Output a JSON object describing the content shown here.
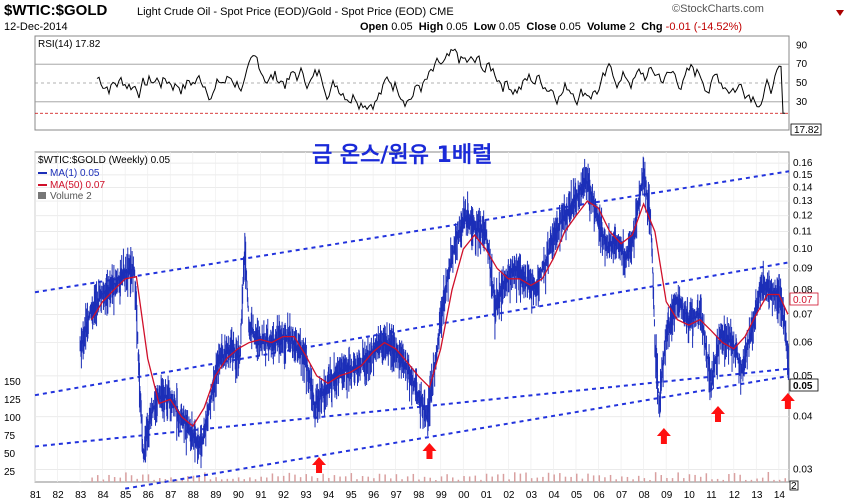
{
  "header": {
    "symbol": "$WTIC:$GOLD",
    "description": "Light Crude Oil - Spot Price (EOD)/Gold - Spot Price (EOD)",
    "exchange": "CME",
    "date": "12-Dec-2014",
    "logo": "©StockCharts.com",
    "open_label": "Open",
    "open": "0.05",
    "high_label": "High",
    "high": "0.05",
    "low_label": "Low",
    "low": "0.05",
    "close_label": "Close",
    "close": "0.05",
    "volume_label": "Volume",
    "volume": "2",
    "chg_label": "Chg",
    "chg": "-0.01 (-14.52%)",
    "marker_icon": "red-down-triangle-icon"
  },
  "annotation": "금 온스/원유 1배럴",
  "colors": {
    "price": "#1c2fb8",
    "ma50": "#d0102a",
    "channel": "#2233dd",
    "rsi": "#000000",
    "arrow": "#ff1010",
    "rsi_ref": "#cc0000"
  },
  "chart_data": [
    {
      "type": "line",
      "title": "RSI(14) 17.82",
      "series": [
        {
          "name": "RSI(14)",
          "last": 17.82
        }
      ],
      "ylim": [
        0,
        100
      ],
      "yticks": [
        "90",
        "70",
        "50",
        "30"
      ],
      "last_label": "17.82",
      "reference_lines": [
        70,
        50,
        30
      ]
    },
    {
      "type": "line",
      "log_scale": true,
      "title": "$WTIC:$GOLD (Weekly) 0.05",
      "legend": [
        "MA(1) 0.05",
        "MA(50) 0.07",
        "Volume 2"
      ],
      "legend_placement": "top-left",
      "right_ticks": [
        "0.16",
        "0.15",
        "0.14",
        "0.13",
        "0.12",
        "0.11",
        "0.10",
        "0.09",
        "0.08",
        "0.07",
        "0.06",
        "0.05",
        "0.04",
        "0.03"
      ],
      "left_volume_ticks": [
        "150",
        "125",
        "100",
        "75",
        "50",
        "25"
      ],
      "x_ticks": [
        "81",
        "82",
        "83",
        "84",
        "85",
        "86",
        "87",
        "88",
        "89",
        "90",
        "91",
        "92",
        "93",
        "94",
        "95",
        "96",
        "97",
        "98",
        "99",
        "00",
        "01",
        "02",
        "03",
        "04",
        "05",
        "06",
        "07",
        "08",
        "09",
        "10",
        "11",
        "12",
        "13",
        "14"
      ],
      "last_price_label": "0.05",
      "ma50_label": "0.07",
      "volume_label": "2",
      "ylim": [
        0.028,
        0.17
      ],
      "series": [
        {
          "name": "MA(1)",
          "points": [
            [
              1983.5,
              0.058
            ],
            [
              1984.0,
              0.072
            ],
            [
              1984.5,
              0.078
            ],
            [
              1985.0,
              0.082
            ],
            [
              1985.5,
              0.088
            ],
            [
              1985.9,
              0.09
            ],
            [
              1986.1,
              0.052
            ],
            [
              1986.3,
              0.032
            ],
            [
              1986.6,
              0.04
            ],
            [
              1987.0,
              0.045
            ],
            [
              1987.5,
              0.044
            ],
            [
              1988.0,
              0.04
            ],
            [
              1988.5,
              0.036
            ],
            [
              1988.9,
              0.034
            ],
            [
              1989.3,
              0.044
            ],
            [
              1989.7,
              0.055
            ],
            [
              1990.2,
              0.058
            ],
            [
              1990.6,
              0.055
            ],
            [
              1990.8,
              0.098
            ],
            [
              1991.0,
              0.065
            ],
            [
              1991.5,
              0.06
            ],
            [
              1992.0,
              0.06
            ],
            [
              1992.5,
              0.062
            ],
            [
              1993.0,
              0.06
            ],
            [
              1993.5,
              0.055
            ],
            [
              1993.9,
              0.042
            ],
            [
              1994.3,
              0.046
            ],
            [
              1994.8,
              0.05
            ],
            [
              1995.3,
              0.052
            ],
            [
              1995.8,
              0.052
            ],
            [
              1996.3,
              0.055
            ],
            [
              1996.8,
              0.06
            ],
            [
              1997.3,
              0.058
            ],
            [
              1997.8,
              0.055
            ],
            [
              1998.3,
              0.048
            ],
            [
              1998.9,
              0.04
            ],
            [
              1999.3,
              0.055
            ],
            [
              1999.7,
              0.08
            ],
            [
              2000.2,
              0.105
            ],
            [
              2000.6,
              0.12
            ],
            [
              2001.0,
              0.112
            ],
            [
              2001.5,
              0.11
            ],
            [
              2001.9,
              0.072
            ],
            [
              2002.3,
              0.082
            ],
            [
              2002.8,
              0.09
            ],
            [
              2003.2,
              0.085
            ],
            [
              2003.7,
              0.08
            ],
            [
              2004.2,
              0.095
            ],
            [
              2004.6,
              0.11
            ],
            [
              2005.2,
              0.125
            ],
            [
              2005.7,
              0.138
            ],
            [
              2006.0,
              0.145
            ],
            [
              2006.5,
              0.115
            ],
            [
              2006.9,
              0.1
            ],
            [
              2007.3,
              0.105
            ],
            [
              2007.7,
              0.095
            ],
            [
              2008.1,
              0.11
            ],
            [
              2008.5,
              0.15
            ],
            [
              2008.8,
              0.12
            ],
            [
              2009.0,
              0.06
            ],
            [
              2009.2,
              0.042
            ],
            [
              2009.5,
              0.062
            ],
            [
              2010.0,
              0.076
            ],
            [
              2010.5,
              0.068
            ],
            [
              2011.0,
              0.07
            ],
            [
              2011.5,
              0.048
            ],
            [
              2011.9,
              0.062
            ],
            [
              2012.4,
              0.06
            ],
            [
              2012.9,
              0.052
            ],
            [
              2013.4,
              0.068
            ],
            [
              2013.7,
              0.082
            ],
            [
              2014.0,
              0.08
            ],
            [
              2014.5,
              0.078
            ],
            [
              2014.8,
              0.065
            ],
            [
              2014.95,
              0.05
            ]
          ]
        },
        {
          "name": "MA(50)",
          "points": [
            [
              1984.0,
              0.068
            ],
            [
              1984.5,
              0.075
            ],
            [
              1985.0,
              0.08
            ],
            [
              1985.5,
              0.085
            ],
            [
              1986.0,
              0.086
            ],
            [
              1986.5,
              0.055
            ],
            [
              1987.0,
              0.043
            ],
            [
              1987.5,
              0.044
            ],
            [
              1988.0,
              0.04
            ],
            [
              1988.5,
              0.038
            ],
            [
              1989.0,
              0.042
            ],
            [
              1989.5,
              0.05
            ],
            [
              1990.0,
              0.055
            ],
            [
              1990.5,
              0.058
            ],
            [
              1991.0,
              0.06
            ],
            [
              1991.5,
              0.061
            ],
            [
              1992.0,
              0.06
            ],
            [
              1992.5,
              0.062
            ],
            [
              1993.0,
              0.062
            ],
            [
              1993.5,
              0.056
            ],
            [
              1994.0,
              0.05
            ],
            [
              1994.5,
              0.048
            ],
            [
              1995.0,
              0.05
            ],
            [
              1995.5,
              0.051
            ],
            [
              1996.0,
              0.053
            ],
            [
              1996.5,
              0.057
            ],
            [
              1997.0,
              0.06
            ],
            [
              1997.5,
              0.058
            ],
            [
              1998.0,
              0.054
            ],
            [
              1998.5,
              0.05
            ],
            [
              1999.0,
              0.047
            ],
            [
              1999.5,
              0.058
            ],
            [
              2000.0,
              0.08
            ],
            [
              2000.5,
              0.1
            ],
            [
              2001.0,
              0.108
            ],
            [
              2001.5,
              0.1
            ],
            [
              2002.0,
              0.09
            ],
            [
              2002.5,
              0.085
            ],
            [
              2003.0,
              0.085
            ],
            [
              2003.5,
              0.082
            ],
            [
              2004.0,
              0.085
            ],
            [
              2004.5,
              0.095
            ],
            [
              2005.0,
              0.11
            ],
            [
              2005.5,
              0.12
            ],
            [
              2006.0,
              0.13
            ],
            [
              2006.5,
              0.125
            ],
            [
              2007.0,
              0.11
            ],
            [
              2007.5,
              0.103
            ],
            [
              2008.0,
              0.108
            ],
            [
              2008.5,
              0.128
            ],
            [
              2009.0,
              0.11
            ],
            [
              2009.5,
              0.075
            ],
            [
              2010.0,
              0.068
            ],
            [
              2010.5,
              0.066
            ],
            [
              2011.0,
              0.068
            ],
            [
              2011.5,
              0.064
            ],
            [
              2012.0,
              0.06
            ],
            [
              2012.5,
              0.058
            ],
            [
              2013.0,
              0.062
            ],
            [
              2013.5,
              0.07
            ],
            [
              2014.0,
              0.078
            ],
            [
              2014.5,
              0.078
            ],
            [
              2014.9,
              0.07
            ]
          ]
        }
      ],
      "channel_lines": [
        {
          "from": [
            1981.5,
            0.079
          ],
          "to": [
            2014.95,
            0.153
          ]
        },
        {
          "from": [
            1981.5,
            0.045
          ],
          "to": [
            2014.95,
            0.093
          ]
        },
        {
          "from": [
            1981.5,
            0.034
          ],
          "to": [
            2014.95,
            0.052
          ]
        },
        {
          "from": [
            1985.5,
            0.027
          ],
          "to": [
            2014.95,
            0.05
          ]
        }
      ],
      "arrows": [
        1994.1,
        1999.0,
        2009.4,
        2011.8,
        2014.9
      ]
    }
  ]
}
